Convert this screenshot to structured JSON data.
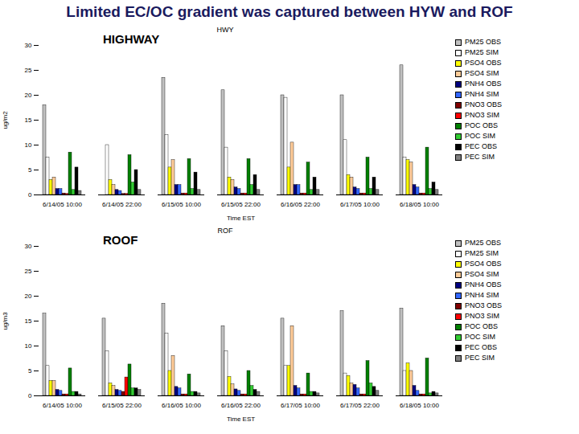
{
  "heading": "Limited EC/OC gradient was captured between HYW and ROF",
  "chart_data": [
    {
      "type": "bar",
      "title": "HWY",
      "annotation": "HIGHWAY",
      "x_label": "Time EST",
      "y_label": "ug/m2",
      "categories": [
        "6/14/05 10:00",
        "6/14/05 22:00",
        "6/15/05 10:00",
        "6/15/05 22:00",
        "6/16/05 22:00",
        "6/17/05 10:00",
        "6/18/05 10:00"
      ],
      "ylim": [
        0,
        30
      ],
      "yticks": [
        0,
        5,
        10,
        15,
        20,
        25,
        30
      ],
      "grid": false,
      "legend": "right",
      "series": [
        {
          "name": "PM25 OBS",
          "color": "#c0c0c0",
          "values": [
            18,
            null,
            23.5,
            21,
            20,
            20,
            26
          ]
        },
        {
          "name": "PM25 SIM",
          "color": "#ffffff",
          "values": [
            7.5,
            10,
            12,
            9.5,
            19.5,
            11,
            7.5
          ]
        },
        {
          "name": "PSO4 OBS",
          "color": "#ffff00",
          "values": [
            3,
            3,
            5.5,
            3.5,
            5.5,
            4,
            7
          ]
        },
        {
          "name": "PSO4 SIM",
          "color": "#ffcc99",
          "values": [
            3.5,
            2,
            7,
            3,
            10.5,
            3.5,
            6.5
          ]
        },
        {
          "name": "PNH4 OBS",
          "color": "#000080",
          "values": [
            1.2,
            1,
            2,
            1.5,
            2,
            1.5,
            2
          ]
        },
        {
          "name": "PNH4 SIM",
          "color": "#3366ff",
          "values": [
            1.2,
            0.8,
            2,
            1.2,
            2,
            1.2,
            1.5
          ]
        },
        {
          "name": "PNO3 OBS",
          "color": "#800000",
          "values": [
            0.3,
            0.2,
            0.3,
            0.3,
            0.3,
            0.3,
            0.3
          ]
        },
        {
          "name": "PNO3 SIM",
          "color": "#ff0000",
          "values": [
            0.2,
            0.2,
            0.3,
            0.3,
            0.3,
            0.3,
            0.3
          ]
        },
        {
          "name": "POC OBS",
          "color": "#008000",
          "values": [
            8.5,
            8,
            7.2,
            7.2,
            6.5,
            7.5,
            9.5
          ]
        },
        {
          "name": "POC SIM",
          "color": "#33cc33",
          "values": [
            1,
            2.5,
            1.2,
            2,
            1,
            1.2,
            1.2
          ]
        },
        {
          "name": "PEC OBS",
          "color": "#000000",
          "values": [
            5.5,
            5,
            4.5,
            4,
            3.5,
            3.5,
            2.5
          ]
        },
        {
          "name": "PEC SIM",
          "color": "#808080",
          "values": [
            0.8,
            1,
            1,
            1,
            1,
            1,
            1
          ]
        }
      ]
    },
    {
      "type": "bar",
      "title": "ROF",
      "annotation": "ROOF",
      "x_label": "Time EST",
      "y_label": "ug/m3",
      "categories": [
        "6/14/05 10:00",
        "6/15/05 22:00",
        "6/16/05 10:00",
        "6/16/05 22:00",
        "6/17/05 10:00",
        "6/17/05 22:00",
        "6/18/05 10:00"
      ],
      "ylim": [
        0,
        30
      ],
      "yticks": [
        0,
        5,
        10,
        15,
        20,
        25,
        30
      ],
      "grid": false,
      "legend": "right",
      "series": [
        {
          "name": "PM25 OBS",
          "color": "#c0c0c0",
          "values": [
            16.5,
            15.5,
            18.5,
            14,
            15.5,
            17,
            17.5
          ]
        },
        {
          "name": "PM25 SIM",
          "color": "#ffffff",
          "values": [
            6,
            9,
            12.5,
            9,
            6,
            4.5,
            5
          ]
        },
        {
          "name": "PSO4 OBS",
          "color": "#ffff00",
          "values": [
            3,
            2.5,
            5,
            3.8,
            6,
            4,
            6.5
          ]
        },
        {
          "name": "PSO4 SIM",
          "color": "#ffcc99",
          "values": [
            3,
            2,
            8,
            2.3,
            14,
            2.5,
            5
          ]
        },
        {
          "name": "PNH4 OBS",
          "color": "#000080",
          "values": [
            1.2,
            1.2,
            1.8,
            1.3,
            2,
            2.2,
            2
          ]
        },
        {
          "name": "PNH4 SIM",
          "color": "#3366ff",
          "values": [
            1,
            1,
            1.5,
            1,
            1.5,
            1.5,
            1
          ]
        },
        {
          "name": "PNO3 OBS",
          "color": "#800000",
          "values": [
            0.3,
            0.8,
            0.3,
            0.3,
            0.3,
            0.3,
            0.3
          ]
        },
        {
          "name": "PNO3 SIM",
          "color": "#ff0000",
          "values": [
            0.3,
            3.7,
            0.3,
            0.3,
            0.3,
            0.3,
            0.3
          ]
        },
        {
          "name": "POC OBS",
          "color": "#008000",
          "values": [
            5.5,
            6.3,
            4.3,
            5,
            4.5,
            7,
            7.5
          ]
        },
        {
          "name": "POC SIM",
          "color": "#33cc33",
          "values": [
            0.8,
            1.5,
            0.8,
            2,
            0.8,
            2.5,
            0.5
          ]
        },
        {
          "name": "PEC OBS",
          "color": "#000000",
          "values": [
            0.8,
            1.5,
            0.8,
            1.2,
            0.8,
            1.8,
            0.8
          ]
        },
        {
          "name": "PEC SIM",
          "color": "#808080",
          "values": [
            0.3,
            1.2,
            0.5,
            0.8,
            0.5,
            1,
            0.5
          ]
        }
      ]
    }
  ]
}
